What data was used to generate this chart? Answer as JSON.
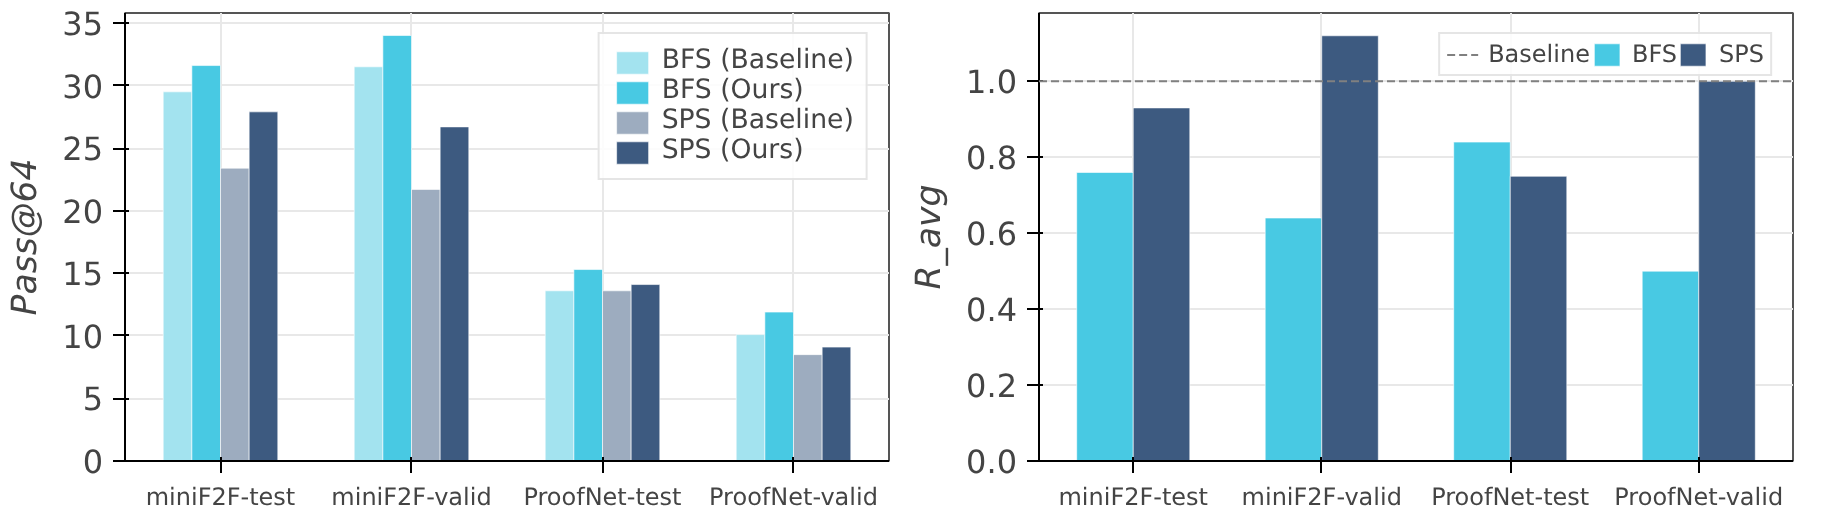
{
  "chart_data": [
    {
      "type": "bar",
      "ylabel": "Pass@64",
      "categories": [
        "miniF2F-test",
        "miniF2F-valid",
        "ProofNet-test",
        "ProofNet-valid"
      ],
      "series": [
        {
          "name": "BFS (Baseline)",
          "color": "#a3e3ef",
          "values": [
            29.5,
            31.5,
            13.6,
            10.1
          ]
        },
        {
          "name": "BFS (Ours)",
          "color": "#48c9e3",
          "values": [
            31.6,
            34.0,
            15.3,
            11.9
          ]
        },
        {
          "name": "SPS (Baseline)",
          "color": "#9dacbf",
          "values": [
            23.4,
            21.7,
            13.6,
            8.5
          ]
        },
        {
          "name": "SPS (Ours)",
          "color": "#3d5a80",
          "values": [
            27.9,
            26.7,
            14.1,
            9.1
          ]
        }
      ],
      "ylim": [
        0,
        35.8
      ],
      "yticks": [
        0,
        5,
        10,
        15,
        20,
        25,
        30,
        35
      ],
      "grid": true,
      "legend": "top right"
    },
    {
      "type": "bar",
      "ylabel": "R_avg",
      "categories": [
        "miniF2F-test",
        "miniF2F-valid",
        "ProofNet-test",
        "ProofNet-valid"
      ],
      "series": [
        {
          "name": "BFS",
          "color": "#48c9e3",
          "values": [
            0.76,
            0.64,
            0.84,
            0.5
          ]
        },
        {
          "name": "SPS",
          "color": "#3d5a80",
          "values": [
            0.93,
            1.12,
            0.75,
            1.0
          ]
        }
      ],
      "ylim": [
        0,
        1.18
      ],
      "yticks": [
        {
          "value": 0,
          "label": "0.0"
        },
        {
          "value": 0.2,
          "label": "0.2"
        },
        {
          "value": 0.4,
          "label": "0.4"
        },
        {
          "value": 0.6,
          "label": "0.6"
        },
        {
          "value": 0.8,
          "label": "0.8"
        },
        {
          "value": 1.0,
          "label": "1.0"
        }
      ],
      "ref_lines": [
        {
          "axis": "y",
          "value": 1.0,
          "label": "Baseline",
          "color": "#808080",
          "line_style": "dashed"
        }
      ],
      "grid": true,
      "legend": "top right"
    }
  ]
}
